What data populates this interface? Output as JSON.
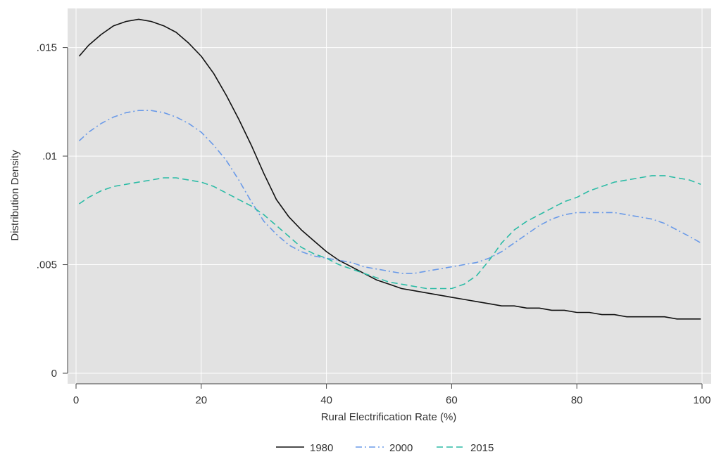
{
  "chart_data": {
    "type": "line",
    "title": "",
    "xlabel": "Rural Electrification Rate (%)",
    "ylabel": "Distribution Density",
    "xlim": [
      0,
      100
    ],
    "ylim": [
      0,
      0.0168
    ],
    "x_ticks": [
      0,
      20,
      40,
      60,
      80,
      100
    ],
    "x_tick_labels": [
      "0",
      "20",
      "40",
      "60",
      "80",
      "100"
    ],
    "y_ticks": [
      0,
      0.005,
      0.01,
      0.015
    ],
    "y_tick_labels": [
      "0",
      ".005",
      ".01",
      ".015"
    ],
    "grid": true,
    "legend_position": "bottom",
    "colors": {
      "panel_background": "#e2e2e2",
      "grid": "#ffffff",
      "axis": "#444444"
    },
    "series": [
      {
        "name": "1980",
        "color": "#111111",
        "line_style": "solid",
        "x": [
          0.5,
          2,
          4,
          6,
          8,
          10,
          12,
          14,
          16,
          18,
          20,
          22,
          24,
          26,
          28,
          30,
          32,
          34,
          36,
          38,
          40,
          42,
          44,
          46,
          48,
          50,
          52,
          54,
          56,
          58,
          60,
          62,
          64,
          66,
          68,
          70,
          72,
          74,
          76,
          78,
          80,
          82,
          84,
          86,
          88,
          90,
          92,
          94,
          96,
          98,
          99.8
        ],
        "y": [
          0.0146,
          0.0151,
          0.0156,
          0.016,
          0.0162,
          0.0163,
          0.0162,
          0.016,
          0.0157,
          0.0152,
          0.0146,
          0.0138,
          0.0128,
          0.0117,
          0.0105,
          0.0092,
          0.008,
          0.0072,
          0.0066,
          0.0061,
          0.0056,
          0.0052,
          0.0049,
          0.0046,
          0.0043,
          0.0041,
          0.0039,
          0.0038,
          0.0037,
          0.0036,
          0.0035,
          0.0034,
          0.0033,
          0.0032,
          0.0031,
          0.0031,
          0.003,
          0.003,
          0.0029,
          0.0029,
          0.0028,
          0.0028,
          0.0027,
          0.0027,
          0.0026,
          0.0026,
          0.0026,
          0.0026,
          0.0025,
          0.0025,
          0.0025
        ]
      },
      {
        "name": "2000",
        "color": "#6a9ae8",
        "line_style": "dash-dot",
        "x": [
          0.5,
          2,
          4,
          6,
          8,
          10,
          12,
          14,
          16,
          18,
          20,
          22,
          24,
          26,
          28,
          30,
          32,
          34,
          36,
          38,
          40,
          42,
          44,
          46,
          48,
          50,
          52,
          54,
          56,
          58,
          60,
          62,
          64,
          66,
          68,
          70,
          72,
          74,
          76,
          78,
          80,
          82,
          84,
          86,
          88,
          90,
          92,
          94,
          96,
          98,
          99.8
        ],
        "y": [
          0.0107,
          0.0111,
          0.0115,
          0.0118,
          0.012,
          0.0121,
          0.0121,
          0.012,
          0.0118,
          0.0115,
          0.0111,
          0.0105,
          0.0098,
          0.0089,
          0.0079,
          0.007,
          0.0064,
          0.0059,
          0.0056,
          0.0054,
          0.0053,
          0.0052,
          0.0051,
          0.0049,
          0.0048,
          0.0047,
          0.0046,
          0.0046,
          0.0047,
          0.0048,
          0.0049,
          0.005,
          0.0051,
          0.0053,
          0.0056,
          0.006,
          0.0064,
          0.0068,
          0.0071,
          0.0073,
          0.0074,
          0.0074,
          0.0074,
          0.0074,
          0.0073,
          0.0072,
          0.0071,
          0.0069,
          0.0066,
          0.0063,
          0.006
        ]
      },
      {
        "name": "2015",
        "color": "#2dbca6",
        "line_style": "dashed",
        "x": [
          0.5,
          2,
          4,
          6,
          8,
          10,
          12,
          14,
          16,
          18,
          20,
          22,
          24,
          26,
          28,
          30,
          32,
          34,
          36,
          38,
          40,
          42,
          44,
          46,
          48,
          50,
          52,
          54,
          56,
          58,
          60,
          62,
          64,
          66,
          68,
          70,
          72,
          74,
          76,
          78,
          80,
          82,
          84,
          86,
          88,
          90,
          92,
          94,
          96,
          98,
          99.8
        ],
        "y": [
          0.0078,
          0.0081,
          0.0084,
          0.0086,
          0.0087,
          0.0088,
          0.0089,
          0.009,
          0.009,
          0.0089,
          0.0088,
          0.0086,
          0.0083,
          0.008,
          0.0077,
          0.0073,
          0.0068,
          0.0063,
          0.0058,
          0.0055,
          0.0053,
          0.005,
          0.0048,
          0.0046,
          0.0044,
          0.0042,
          0.0041,
          0.004,
          0.0039,
          0.0039,
          0.0039,
          0.0041,
          0.0045,
          0.0052,
          0.006,
          0.0066,
          0.007,
          0.0073,
          0.0076,
          0.0079,
          0.0081,
          0.0084,
          0.0086,
          0.0088,
          0.0089,
          0.009,
          0.0091,
          0.0091,
          0.009,
          0.0089,
          0.0087
        ]
      }
    ]
  }
}
